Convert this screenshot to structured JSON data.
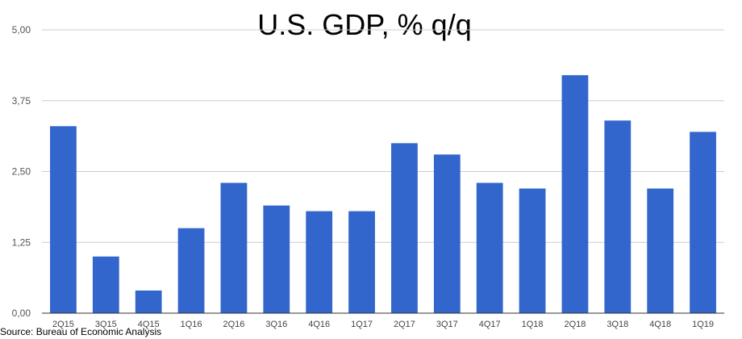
{
  "chart_data": {
    "type": "bar",
    "title": "U.S. GDP, % q/q",
    "categories": [
      "2Q15",
      "3Q15",
      "4Q15",
      "1Q16",
      "2Q16",
      "3Q16",
      "4Q16",
      "1Q17",
      "2Q17",
      "3Q17",
      "4Q17",
      "1Q18",
      "2Q18",
      "3Q18",
      "4Q18",
      "1Q19"
    ],
    "values": [
      3.3,
      1.0,
      0.4,
      1.5,
      2.3,
      1.9,
      1.8,
      1.8,
      3.0,
      2.8,
      2.3,
      2.2,
      4.2,
      3.4,
      2.2,
      3.2
    ],
    "ylim": [
      0,
      5
    ],
    "yticks": [
      0,
      1.25,
      2.5,
      3.75,
      5
    ],
    "ytick_labels": [
      "0,00",
      "1,25",
      "2,50",
      "3,75",
      "5,00"
    ],
    "xlabel": "",
    "ylabel": "",
    "grid": true,
    "bar_color": "#3366cc"
  },
  "source": "Source: Bureau of Economic Analysis"
}
